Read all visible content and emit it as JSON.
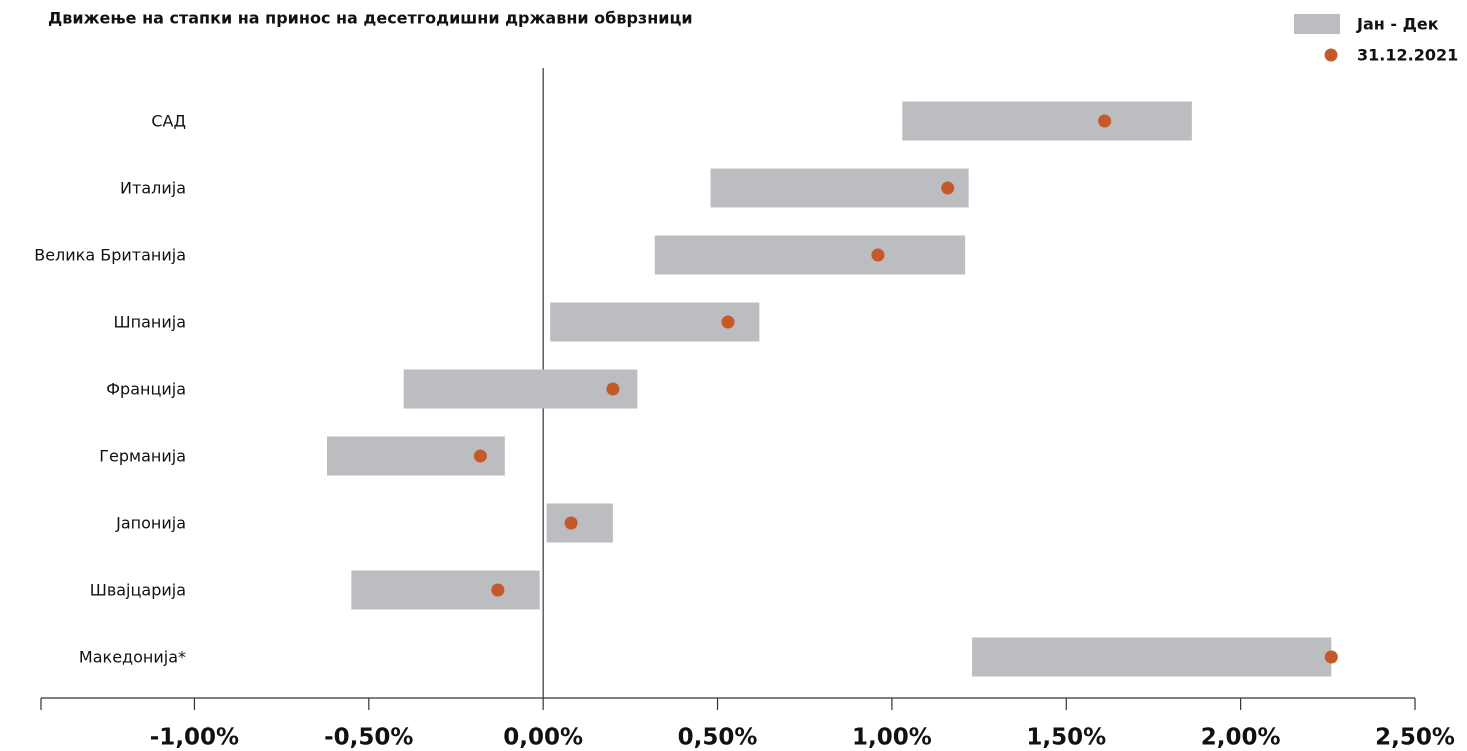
{
  "chart_data": {
    "type": "range",
    "title": "Движење на стапки на принос на десетгодишни државни обврзници",
    "categories": [
      "САД",
      "Италија",
      "Велика Британија",
      "Шпанија",
      "Франција",
      "Германија",
      "Јапонија",
      "Швајцарија",
      "Македонија*"
    ],
    "series": [
      {
        "name": "Јан - Дек",
        "color": "#bcbdc0",
        "low": [
          1.03,
          0.48,
          0.32,
          0.02,
          -0.4,
          -0.62,
          0.01,
          -0.55,
          1.23
        ],
        "high": [
          1.86,
          1.22,
          1.21,
          0.62,
          0.27,
          -0.11,
          0.2,
          -0.01,
          2.26
        ]
      },
      {
        "name": "31.12.2021",
        "color": "#c55a28",
        "values": [
          1.61,
          1.16,
          0.96,
          0.53,
          0.2,
          -0.18,
          0.08,
          -0.13,
          2.26
        ]
      }
    ],
    "xlim": [
      -1.44,
      2.5
    ],
    "xticks": [
      {
        "value": -1,
        "label": "-1,00%"
      },
      {
        "value": -0.5,
        "label": "-0,50%"
      },
      {
        "value": 0,
        "label": "0,00%"
      },
      {
        "value": 0.5,
        "label": "0,50%"
      },
      {
        "value": 1,
        "label": "1,00%"
      },
      {
        "value": 1.5,
        "label": "1,50%"
      },
      {
        "value": 2,
        "label": "2,00%"
      },
      {
        "value": 2.5,
        "label": "2,50%"
      }
    ],
    "legend": "top-right"
  }
}
